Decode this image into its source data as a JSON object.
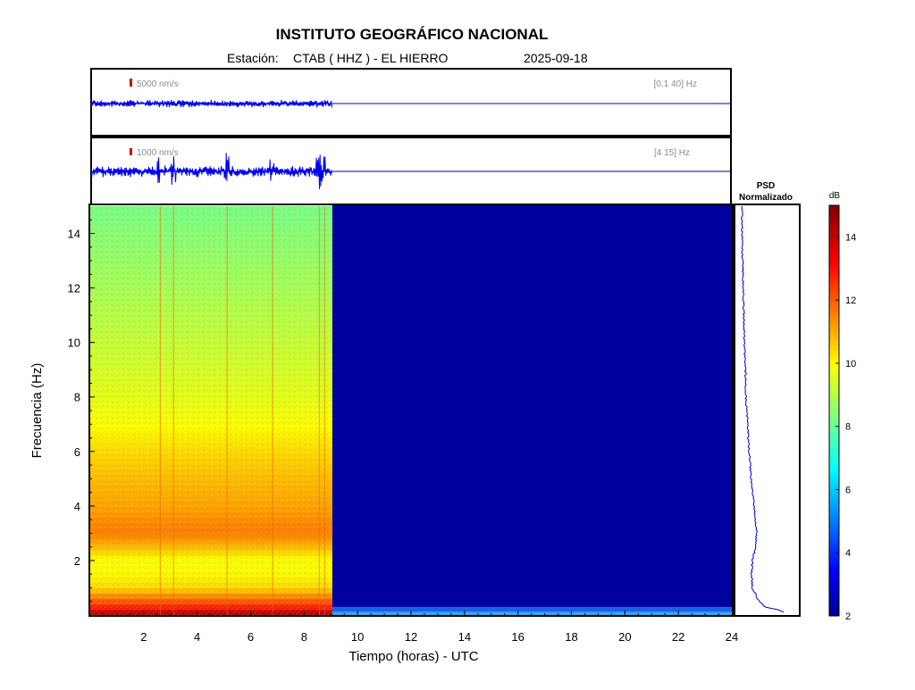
{
  "header": {
    "title": "INSTITUTO GEOGRÁFICO NACIONAL",
    "station_label": "Estación:",
    "station": "CTAB ( HHZ ) - EL HIERRO",
    "date": "2025-09-18"
  },
  "trace1": {
    "scale_label": "5000 nm/s",
    "filter_label": "[0.1 40] Hz"
  },
  "trace2": {
    "scale_label": "1000 nm/s",
    "filter_label": "[4 15] Hz"
  },
  "psd": {
    "title_line1": "PSD",
    "title_line2": "Normalizado"
  },
  "colorbar": {
    "unit": "dB"
  },
  "chart_data": [
    {
      "type": "line",
      "name": "seismogram-broadband",
      "x_range": [
        0,
        24
      ],
      "data_end_hour": 9.05,
      "filter": "[0.1 40] Hz",
      "scale": "5000 nm/s"
    },
    {
      "type": "line",
      "name": "seismogram-filtered",
      "x_range": [
        0,
        24
      ],
      "data_end_hour": 9.05,
      "filter": "[4 15] Hz",
      "scale": "1000 nm/s",
      "notable_events_hours": [
        2.6,
        3.1,
        5.1,
        6.8,
        8.55,
        8.75
      ]
    },
    {
      "type": "heatmap",
      "xlabel": "Tiempo (horas) - UTC",
      "ylabel": "Frecuencia  (Hz)",
      "xlim": [
        0,
        24
      ],
      "ylim": [
        0,
        15
      ],
      "x_ticks": [
        2,
        4,
        6,
        8,
        10,
        12,
        14,
        16,
        18,
        20,
        22,
        24
      ],
      "y_ticks": [
        2,
        4,
        6,
        8,
        10,
        12,
        14
      ],
      "data_end_hour": 9.05,
      "color_scale_db": [
        2,
        15
      ],
      "colorbar_ticks": [
        2,
        4,
        6,
        8,
        10,
        12,
        14
      ],
      "band_profile_db": [
        {
          "f": 0.1,
          "db": 14.2
        },
        {
          "f": 0.3,
          "db": 13.0
        },
        {
          "f": 0.6,
          "db": 12.0
        },
        {
          "f": 1.0,
          "db": 10.6
        },
        {
          "f": 1.5,
          "db": 10.2
        },
        {
          "f": 2.0,
          "db": 10.0
        },
        {
          "f": 2.5,
          "db": 11.0
        },
        {
          "f": 3.0,
          "db": 11.8
        },
        {
          "f": 3.5,
          "db": 11.6
        },
        {
          "f": 4.0,
          "db": 11.3
        },
        {
          "f": 5.0,
          "db": 11.0
        },
        {
          "f": 6.0,
          "db": 10.6
        },
        {
          "f": 7.0,
          "db": 10.1
        },
        {
          "f": 8.0,
          "db": 9.8
        },
        {
          "f": 9.0,
          "db": 9.6
        },
        {
          "f": 10.0,
          "db": 9.4
        },
        {
          "f": 11.0,
          "db": 9.2
        },
        {
          "f": 12.0,
          "db": 9.0
        },
        {
          "f": 13.0,
          "db": 8.8
        },
        {
          "f": 14.0,
          "db": 8.6
        },
        {
          "f": 15.0,
          "db": 8.4
        }
      ]
    },
    {
      "type": "line",
      "name": "psd-normalized",
      "ylim": [
        0,
        15
      ],
      "points": [
        {
          "f": 0.1,
          "v": 0.9
        },
        {
          "f": 0.2,
          "v": 0.75
        },
        {
          "f": 0.3,
          "v": 0.55
        },
        {
          "f": 0.5,
          "v": 0.42
        },
        {
          "f": 0.8,
          "v": 0.35
        },
        {
          "f": 1.0,
          "v": 0.3
        },
        {
          "f": 1.5,
          "v": 0.28
        },
        {
          "f": 2.0,
          "v": 0.3
        },
        {
          "f": 2.5,
          "v": 0.36
        },
        {
          "f": 3.0,
          "v": 0.38
        },
        {
          "f": 3.5,
          "v": 0.36
        },
        {
          "f": 4.0,
          "v": 0.33
        },
        {
          "f": 5.0,
          "v": 0.28
        },
        {
          "f": 6.0,
          "v": 0.24
        },
        {
          "f": 7.0,
          "v": 0.21
        },
        {
          "f": 8.0,
          "v": 0.18
        },
        {
          "f": 9.0,
          "v": 0.17
        },
        {
          "f": 10.0,
          "v": 0.15
        },
        {
          "f": 11.0,
          "v": 0.14
        },
        {
          "f": 12.0,
          "v": 0.13
        },
        {
          "f": 13.0,
          "v": 0.12
        },
        {
          "f": 14.0,
          "v": 0.11
        },
        {
          "f": 15.0,
          "v": 0.11
        }
      ]
    }
  ]
}
